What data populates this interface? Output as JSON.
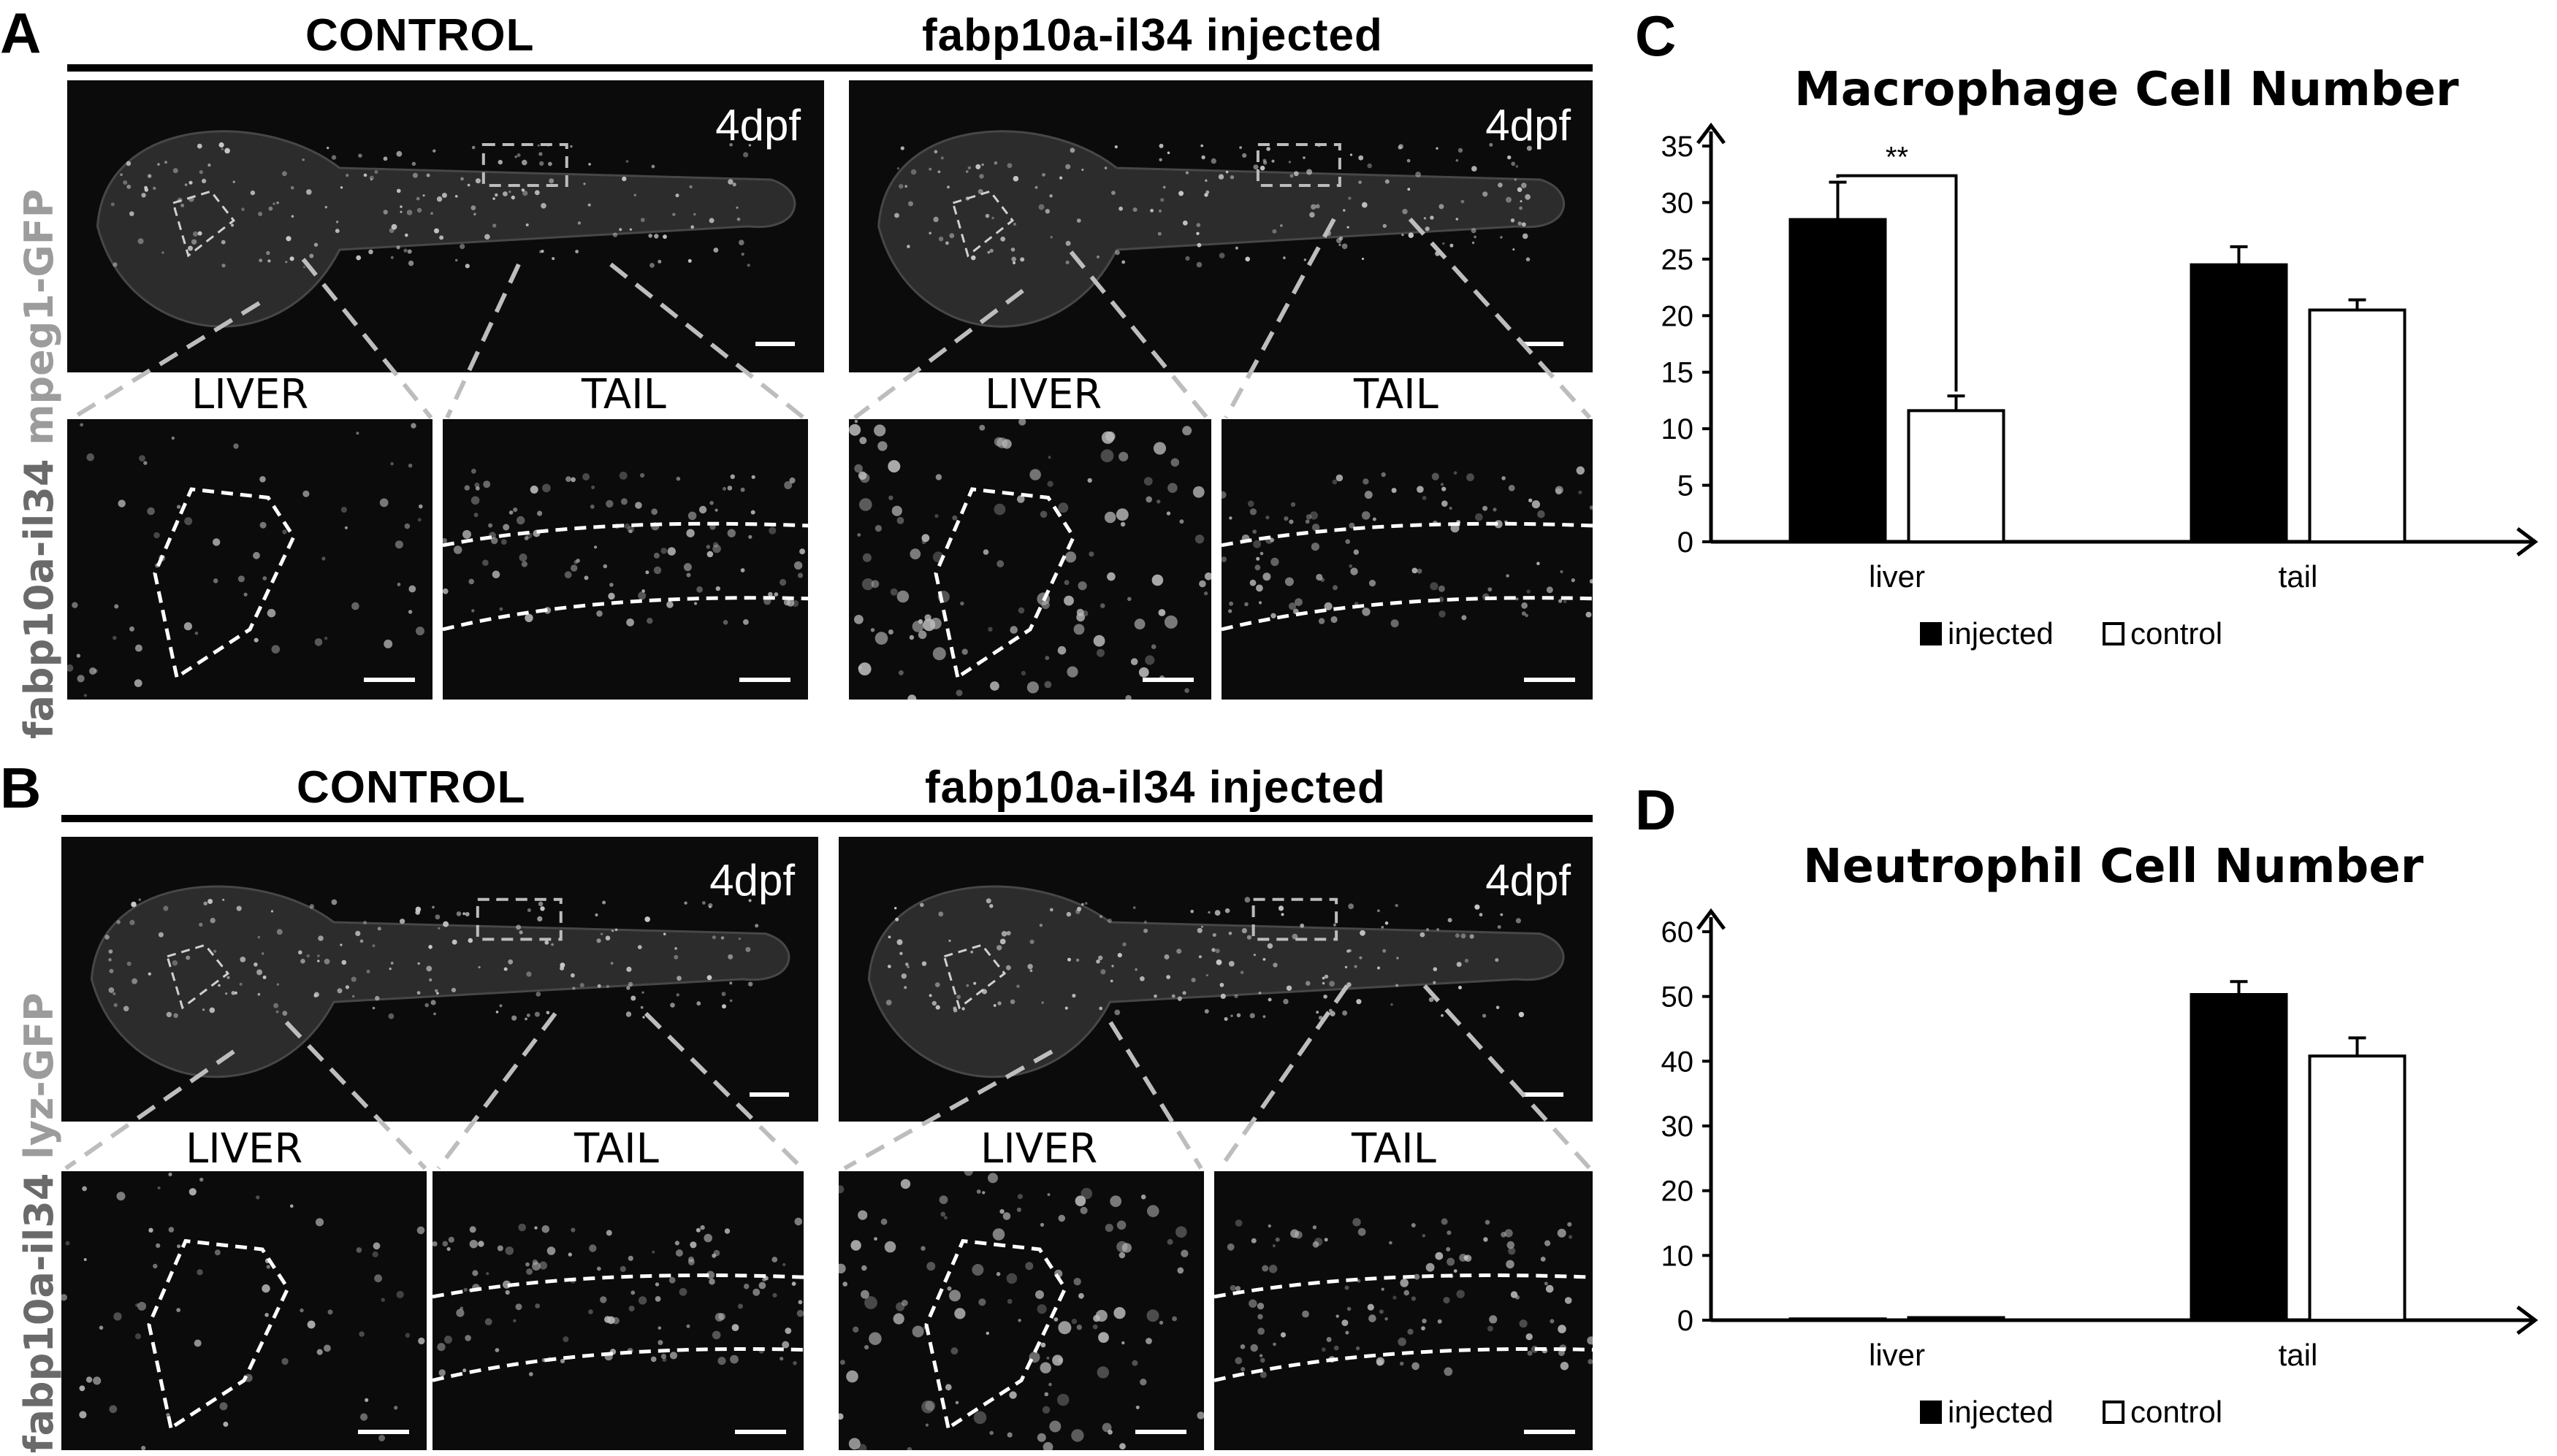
{
  "panels": {
    "A": {
      "letter": "A",
      "header_left": "CONTROL",
      "header_right": "fabp10a-il34 injected",
      "side_label_main": "fabp10a-il34",
      "side_label_sub": "mpeg1-GFP",
      "timepoint": "4dpf",
      "inset_liver": "LIVER",
      "inset_tail": "TAIL"
    },
    "B": {
      "letter": "B",
      "header_left": "CONTROL",
      "header_right": "fabp10a-il34 injected",
      "side_label_main": "fabp10a-il34",
      "side_label_sub": "lyz-GFP",
      "timepoint": "4dpf",
      "inset_liver": "LIVER",
      "inset_tail": "TAIL"
    },
    "C": {
      "letter": "C"
    },
    "D": {
      "letter": "D"
    }
  },
  "chart_data": [
    {
      "type": "bar",
      "title": "Macrophage Cell Number",
      "categories": [
        "liver",
        "tail"
      ],
      "series": [
        {
          "name": "injected",
          "values": [
            28.5,
            24.5
          ],
          "errors": [
            3.3,
            1.6
          ],
          "color": "#000000"
        },
        {
          "name": "control",
          "values": [
            11.6,
            20.5
          ],
          "errors": [
            1.3,
            0.9
          ],
          "color": "#ffffff"
        }
      ],
      "ylim": [
        0,
        35
      ],
      "yticks": [
        "0",
        "5",
        "10",
        "15",
        "20",
        "25",
        "30",
        "35"
      ],
      "significance": "**",
      "legend": "bottom"
    },
    {
      "type": "bar",
      "title": "Neutrophil Cell Number",
      "categories": [
        "liver",
        "tail"
      ],
      "series": [
        {
          "name": "injected",
          "values": [
            0.2,
            50.3
          ],
          "errors": [
            0,
            2.0
          ],
          "color": "#000000"
        },
        {
          "name": "control",
          "values": [
            0.4,
            40.8
          ],
          "errors": [
            0,
            2.8
          ],
          "color": "#ffffff"
        }
      ],
      "ylim": [
        0,
        60
      ],
      "yticks": [
        "0",
        "10",
        "20",
        "30",
        "40",
        "50",
        "60"
      ],
      "legend": "bottom"
    }
  ]
}
